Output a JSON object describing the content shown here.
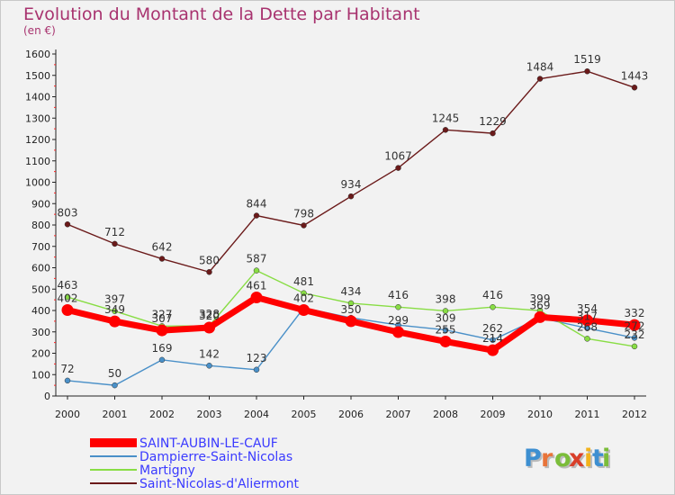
{
  "chart_data": {
    "type": "line",
    "title": "Evolution du Montant de la Dette par Habitant",
    "subtitle": "(en €)",
    "ylim": [
      0,
      1600
    ],
    "yticks": [
      0,
      100,
      200,
      300,
      400,
      500,
      600,
      700,
      800,
      900,
      1000,
      1100,
      1200,
      1300,
      1400,
      1500,
      1600
    ],
    "x": [
      "2000",
      "2001",
      "2002",
      "2003",
      "2004",
      "2005",
      "2006",
      "2007",
      "2008",
      "2009",
      "2010",
      "2011",
      "2012"
    ],
    "grid": false,
    "legend_position": "bottom-left",
    "series": [
      {
        "name": "SAINT-AUBIN-LE-CAUF",
        "color": "#ff0000",
        "text_color": "#3a3aff",
        "style": "thick",
        "values": [
          402,
          349,
          307,
          320,
          461,
          402,
          350,
          299,
          255,
          214,
          369,
          354,
          332
        ],
        "labels": [
          "402",
          "349",
          "307",
          "320",
          "461",
          "402",
          "350",
          "299",
          "255",
          "214",
          "369",
          "354",
          "332"
        ]
      },
      {
        "name": "Dampierre-Saint-Nicolas",
        "color": "#4a90c8",
        "text_color": "#3a3aff",
        "style": "thin",
        "values": [
          72,
          50,
          169,
          142,
          123,
          412,
          366,
          332,
          309,
          262,
          366,
          317,
          272
        ],
        "labels": [
          "72",
          "50",
          "169",
          "142",
          "123",
          "",
          "",
          "",
          "309",
          "262",
          "",
          "317",
          "272"
        ]
      },
      {
        "name": "Martigny",
        "color": "#88dd44",
        "text_color": "#3a3aff",
        "style": "thin",
        "values": [
          463,
          397,
          327,
          328,
          587,
          481,
          434,
          416,
          398,
          416,
          399,
          268,
          232
        ],
        "labels": [
          "463",
          "397",
          "327",
          "328",
          "587",
          "481",
          "434",
          "416",
          "398",
          "416",
          "399",
          "268",
          "232"
        ]
      },
      {
        "name": "Saint-Nicolas-d'Aliermont",
        "color": "#6b1a1a",
        "text_color": "#3a3aff",
        "style": "thin",
        "values": [
          803,
          712,
          642,
          580,
          844,
          798,
          934,
          1067,
          1245,
          1229,
          1484,
          1519,
          1443
        ],
        "labels": [
          "803",
          "712",
          "642",
          "580",
          "844",
          "798",
          "934",
          "1067",
          "1245",
          "1229",
          "1484",
          "1519",
          "1443"
        ]
      }
    ]
  },
  "logo": {
    "text": "Proxiti",
    "letter_colors": [
      "#3d8fd1",
      "#e8743a",
      "#7bbd3a",
      "#d93f2a",
      "#f2b31c",
      "#3d8fd1",
      "#7bbd3a"
    ]
  },
  "colors": {
    "title": "#a8336f",
    "background": "#f2f2f2",
    "axis": "#222222",
    "axis_marks": "#ff2020"
  }
}
